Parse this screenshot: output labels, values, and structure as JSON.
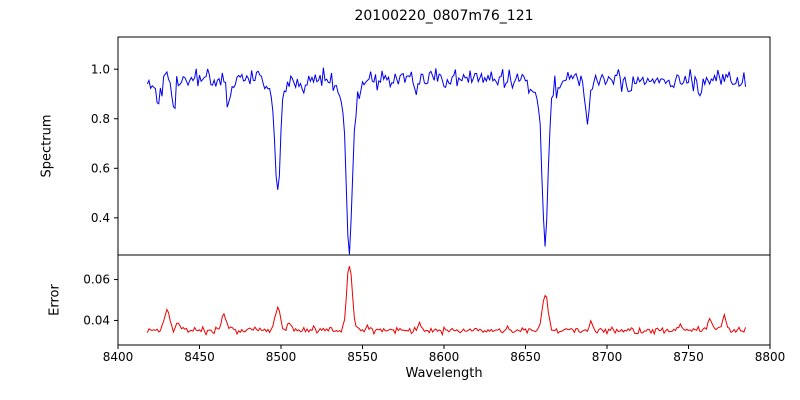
{
  "chart_data": {
    "type": "line",
    "title": "20100220_0807m76_121",
    "xlabel": "Wavelength",
    "xlim": [
      8400,
      8800
    ],
    "xticks": [
      {
        "v": 8400,
        "label": "8400"
      },
      {
        "v": 8450,
        "label": "8450"
      },
      {
        "v": 8500,
        "label": "8500"
      },
      {
        "v": 8550,
        "label": "8550"
      },
      {
        "v": 8600,
        "label": "8600"
      },
      {
        "v": 8650,
        "label": "8650"
      },
      {
        "v": 8700,
        "label": "8700"
      },
      {
        "v": 8750,
        "label": "8750"
      },
      {
        "v": 8800,
        "label": "8800"
      }
    ],
    "x_data_range": [
      8418,
      8785
    ],
    "sample_step": 1,
    "noise_seed": 42,
    "grid": false,
    "legend": "none",
    "panels": [
      {
        "name": "spectrum",
        "ylabel": "Spectrum",
        "color": "#0000ee",
        "ylim": [
          0.25,
          1.13
        ],
        "yticks": [
          {
            "v": 0.4,
            "label": "0.4"
          },
          {
            "v": 0.6,
            "label": "0.6"
          },
          {
            "v": 0.8,
            "label": "0.8"
          },
          {
            "v": 1.0,
            "label": "1.0"
          }
        ],
        "baseline": 0.96,
        "noise_sigma": 0.02,
        "features": [
          {
            "center": 8424,
            "amplitude": -0.09,
            "sigma": 1.2
          },
          {
            "center": 8434,
            "amplitude": -0.12,
            "sigma": 1.3
          },
          {
            "center": 8468,
            "amplitude": -0.1,
            "sigma": 1.2
          },
          {
            "center": 8498,
            "amplitude": -0.4,
            "sigma": 1.6
          },
          {
            "center": 8498,
            "amplitude": -0.05,
            "sigma": 5
          },
          {
            "center": 8514,
            "amplitude": -0.07,
            "sigma": 1.1
          },
          {
            "center": 8542,
            "amplitude": -0.62,
            "sigma": 1.9
          },
          {
            "center": 8542,
            "amplitude": -0.07,
            "sigma": 6
          },
          {
            "center": 8583,
            "amplitude": -0.06,
            "sigma": 1.1
          },
          {
            "center": 8662,
            "amplitude": -0.57,
            "sigma": 1.8
          },
          {
            "center": 8662,
            "amplitude": -0.06,
            "sigma": 6
          },
          {
            "center": 8688,
            "amplitude": -0.19,
            "sigma": 1.3
          },
          {
            "center": 8713,
            "amplitude": -0.06,
            "sigma": 1.1
          },
          {
            "center": 8757,
            "amplitude": -0.05,
            "sigma": 1.1
          }
        ]
      },
      {
        "name": "error",
        "ylabel": "Error",
        "color": "#ee0000",
        "ylim": [
          0.028,
          0.072
        ],
        "yticks": [
          {
            "v": 0.04,
            "label": "0.04"
          },
          {
            "v": 0.06,
            "label": "0.06"
          }
        ],
        "baseline": 0.0352,
        "noise_sigma": 0.0008,
        "features": [
          {
            "center": 8430,
            "amplitude": 0.009,
            "sigma": 1.5
          },
          {
            "center": 8437,
            "amplitude": 0.004,
            "sigma": 1.2
          },
          {
            "center": 8465,
            "amplitude": 0.008,
            "sigma": 1.3
          },
          {
            "center": 8498,
            "amplitude": 0.011,
            "sigma": 1.6
          },
          {
            "center": 8505,
            "amplitude": 0.003,
            "sigma": 1.2
          },
          {
            "center": 8542,
            "amplitude": 0.0315,
            "sigma": 1.7
          },
          {
            "center": 8585,
            "amplitude": 0.003,
            "sigma": 1.2
          },
          {
            "center": 8662,
            "amplitude": 0.017,
            "sigma": 1.7
          },
          {
            "center": 8690,
            "amplitude": 0.004,
            "sigma": 1.2
          },
          {
            "center": 8745,
            "amplitude": 0.003,
            "sigma": 1.2
          },
          {
            "center": 8763,
            "amplitude": 0.006,
            "sigma": 1.4
          },
          {
            "center": 8772,
            "amplitude": 0.007,
            "sigma": 1.2
          }
        ]
      }
    ]
  }
}
